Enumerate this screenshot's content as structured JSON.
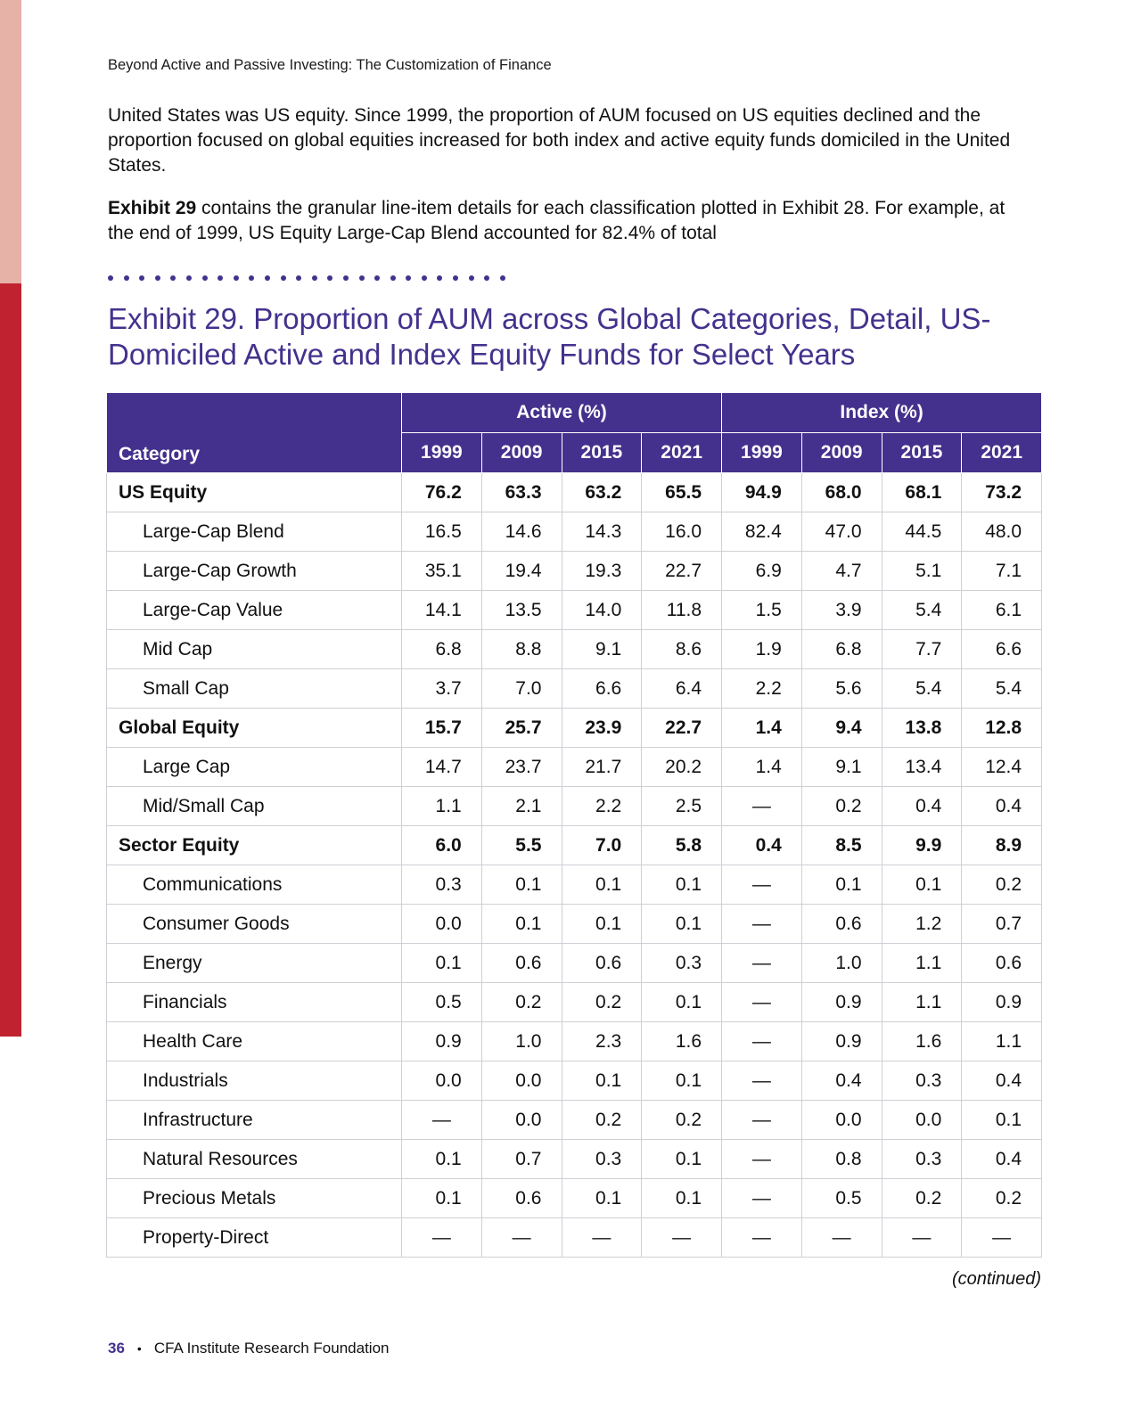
{
  "colors": {
    "accent_purple": "#44318d",
    "side_bar_light": "#e6b1a6",
    "side_bar_dark": "#c0222f",
    "header_text": "#ffffff",
    "row_border": "#cfcfd6"
  },
  "running_head": "Beyond Active and Passive Investing: The Customization of Finance",
  "body": {
    "para1": "United States was US equity. Since 1999, the proportion of AUM focused on US equities declined and the proportion focused on global equities increased for both index and active equity funds domiciled in the United States.",
    "para2_bold": "Exhibit 29",
    "para2_rest": " contains the granular line-item details for each classification plotted in Exhibit 28. For example, at the end of 1999, US Equity Large-Cap Blend accounted for 82.4% of total"
  },
  "divider_dot_count": 26,
  "exhibit": {
    "title": "Exhibit 29. Proportion of AUM across Global Categories, Detail, US-Domiciled Active and Index Equity Funds for Select Years",
    "group_headers": {
      "active": "Active (%)",
      "index": "Index (%)"
    },
    "category_header": "Category",
    "years": [
      "1999",
      "2009",
      "2015",
      "2021",
      "1999",
      "2009",
      "2015",
      "2021"
    ],
    "rows": [
      {
        "category": "US Equity",
        "group": true,
        "values": [
          "76.2",
          "63.3",
          "63.2",
          "65.5",
          "94.9",
          "68.0",
          "68.1",
          "73.2"
        ]
      },
      {
        "category": "Large-Cap Blend",
        "group": false,
        "values": [
          "16.5",
          "14.6",
          "14.3",
          "16.0",
          "82.4",
          "47.0",
          "44.5",
          "48.0"
        ]
      },
      {
        "category": "Large-Cap Growth",
        "group": false,
        "values": [
          "35.1",
          "19.4",
          "19.3",
          "22.7",
          "6.9",
          "4.7",
          "5.1",
          "7.1"
        ]
      },
      {
        "category": "Large-Cap Value",
        "group": false,
        "values": [
          "14.1",
          "13.5",
          "14.0",
          "11.8",
          "1.5",
          "3.9",
          "5.4",
          "6.1"
        ]
      },
      {
        "category": "Mid Cap",
        "group": false,
        "values": [
          "6.8",
          "8.8",
          "9.1",
          "8.6",
          "1.9",
          "6.8",
          "7.7",
          "6.6"
        ]
      },
      {
        "category": "Small Cap",
        "group": false,
        "values": [
          "3.7",
          "7.0",
          "6.6",
          "6.4",
          "2.2",
          "5.6",
          "5.4",
          "5.4"
        ]
      },
      {
        "category": "Global Equity",
        "group": true,
        "values": [
          "15.7",
          "25.7",
          "23.9",
          "22.7",
          "1.4",
          "9.4",
          "13.8",
          "12.8"
        ]
      },
      {
        "category": "Large Cap",
        "group": false,
        "values": [
          "14.7",
          "23.7",
          "21.7",
          "20.2",
          "1.4",
          "9.1",
          "13.4",
          "12.4"
        ]
      },
      {
        "category": "Mid/Small Cap",
        "group": false,
        "values": [
          "1.1",
          "2.1",
          "2.2",
          "2.5",
          "—",
          "0.2",
          "0.4",
          "0.4"
        ]
      },
      {
        "category": "Sector Equity",
        "group": true,
        "values": [
          "6.0",
          "5.5",
          "7.0",
          "5.8",
          "0.4",
          "8.5",
          "9.9",
          "8.9"
        ]
      },
      {
        "category": "Communications",
        "group": false,
        "values": [
          "0.3",
          "0.1",
          "0.1",
          "0.1",
          "—",
          "0.1",
          "0.1",
          "0.2"
        ]
      },
      {
        "category": "Consumer Goods",
        "group": false,
        "values": [
          "0.0",
          "0.1",
          "0.1",
          "0.1",
          "—",
          "0.6",
          "1.2",
          "0.7"
        ]
      },
      {
        "category": "Energy",
        "group": false,
        "values": [
          "0.1",
          "0.6",
          "0.6",
          "0.3",
          "—",
          "1.0",
          "1.1",
          "0.6"
        ]
      },
      {
        "category": "Financials",
        "group": false,
        "values": [
          "0.5",
          "0.2",
          "0.2",
          "0.1",
          "—",
          "0.9",
          "1.1",
          "0.9"
        ]
      },
      {
        "category": "Health Care",
        "group": false,
        "values": [
          "0.9",
          "1.0",
          "2.3",
          "1.6",
          "—",
          "0.9",
          "1.6",
          "1.1"
        ]
      },
      {
        "category": "Industrials",
        "group": false,
        "values": [
          "0.0",
          "0.0",
          "0.1",
          "0.1",
          "—",
          "0.4",
          "0.3",
          "0.4"
        ]
      },
      {
        "category": "Infrastructure",
        "group": false,
        "values": [
          "—",
          "0.0",
          "0.2",
          "0.2",
          "—",
          "0.0",
          "0.0",
          "0.1"
        ]
      },
      {
        "category": "Natural Resources",
        "group": false,
        "values": [
          "0.1",
          "0.7",
          "0.3",
          "0.1",
          "—",
          "0.8",
          "0.3",
          "0.4"
        ]
      },
      {
        "category": "Precious Metals",
        "group": false,
        "values": [
          "0.1",
          "0.6",
          "0.1",
          "0.1",
          "—",
          "0.5",
          "0.2",
          "0.2"
        ]
      },
      {
        "category": "Property-Direct",
        "group": false,
        "values": [
          "—",
          "—",
          "—",
          "—",
          "—",
          "—",
          "—",
          "—"
        ]
      }
    ],
    "continued_label": "(continued)"
  },
  "footer": {
    "page_number": "36",
    "bullet": "•",
    "publisher": "CFA Institute Research Foundation"
  }
}
